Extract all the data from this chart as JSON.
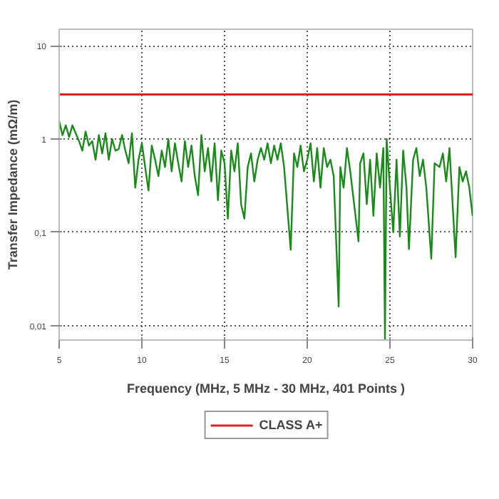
{
  "chart_data": {
    "type": "line",
    "xlabel": "Frequency (MHz, 5 MHz - 30 MHz, 401 Points )",
    "ylabel": "Transfer Impedance (mΩ/m)",
    "log": "y",
    "grid": true,
    "legend": "bottom",
    "line_style": "solid",
    "marker": "none",
    "xlim": [
      5,
      30
    ],
    "ylim": [
      0.007,
      15
    ],
    "xticks": [
      5,
      10,
      15,
      20,
      25,
      30
    ],
    "yticks": [
      {
        "value": 0.01,
        "label": "0,01"
      },
      {
        "value": 0.1,
        "label": "0,1"
      },
      1,
      10
    ],
    "x": [
      5.0,
      5.2,
      5.4,
      5.6,
      5.8,
      6.0,
      6.2,
      6.4,
      6.6,
      6.8,
      7.0,
      7.2,
      7.4,
      7.6,
      7.8,
      8.0,
      8.2,
      8.4,
      8.6,
      8.8,
      9.0,
      9.2,
      9.4,
      9.6,
      9.8,
      10.0,
      10.2,
      10.4,
      10.6,
      10.8,
      11.0,
      11.2,
      11.4,
      11.6,
      11.8,
      12.0,
      12.2,
      12.4,
      12.6,
      12.8,
      13.0,
      13.2,
      13.4,
      13.6,
      13.8,
      14.0,
      14.2,
      14.4,
      14.6,
      14.8,
      15.0,
      15.2,
      15.4,
      15.6,
      15.8,
      16.0,
      16.2,
      16.4,
      16.6,
      16.8,
      17.0,
      17.2,
      17.4,
      17.6,
      17.8,
      18.0,
      18.2,
      18.4,
      18.6,
      19.0,
      19.2,
      19.4,
      19.6,
      19.8,
      20.0,
      20.2,
      20.4,
      20.6,
      20.8,
      21.0,
      21.2,
      21.4,
      21.6,
      21.9,
      22.0,
      22.2,
      22.4,
      22.6,
      23.1,
      23.2,
      23.4,
      23.6,
      23.8,
      24.0,
      24.2,
      24.4,
      24.6,
      24.7,
      24.8,
      25.0,
      25.2,
      25.4,
      25.6,
      25.8,
      26.0,
      26.15,
      26.4,
      26.6,
      26.8,
      27.0,
      27.2,
      27.5,
      27.7,
      28.0,
      28.2,
      28.4,
      28.6,
      28.97,
      29.2,
      29.4,
      29.6,
      29.8,
      30.0
    ],
    "series": [
      {
        "color": "#1a8a1a",
        "values": [
          1.55,
          1.1,
          1.4,
          1.05,
          1.4,
          1.15,
          0.95,
          0.75,
          1.2,
          0.85,
          0.95,
          0.6,
          1.1,
          0.7,
          1.15,
          0.6,
          1.0,
          0.75,
          0.78,
          1.1,
          0.75,
          0.55,
          1.15,
          0.3,
          0.6,
          0.9,
          0.5,
          0.28,
          0.85,
          0.6,
          0.4,
          0.75,
          0.5,
          1.0,
          0.45,
          0.9,
          0.55,
          0.35,
          0.95,
          0.5,
          0.85,
          0.4,
          0.25,
          1.1,
          0.45,
          0.8,
          0.35,
          0.9,
          0.22,
          0.75,
          0.55,
          0.14,
          0.75,
          0.45,
          0.9,
          0.2,
          0.14,
          0.5,
          0.7,
          0.35,
          0.6,
          0.8,
          0.6,
          0.9,
          0.55,
          0.85,
          0.6,
          0.9,
          0.5,
          0.065,
          0.7,
          0.5,
          0.85,
          0.45,
          0.6,
          0.9,
          0.35,
          0.8,
          0.3,
          0.8,
          0.5,
          0.6,
          0.4,
          0.016,
          0.5,
          0.3,
          0.8,
          0.45,
          0.08,
          0.55,
          0.7,
          0.2,
          0.6,
          0.15,
          0.7,
          0.3,
          0.8,
          0.007,
          1.0,
          0.3,
          0.1,
          0.6,
          0.09,
          0.75,
          0.3,
          0.066,
          0.6,
          0.8,
          0.4,
          0.6,
          0.3,
          0.052,
          0.55,
          0.5,
          0.7,
          0.35,
          0.8,
          0.054,
          0.5,
          0.35,
          0.45,
          0.3,
          0.15
        ]
      }
    ],
    "ref_lines": [
      {
        "axis": "y",
        "value": 3,
        "label": "CLASS A+",
        "color": "#e02020"
      }
    ]
  }
}
